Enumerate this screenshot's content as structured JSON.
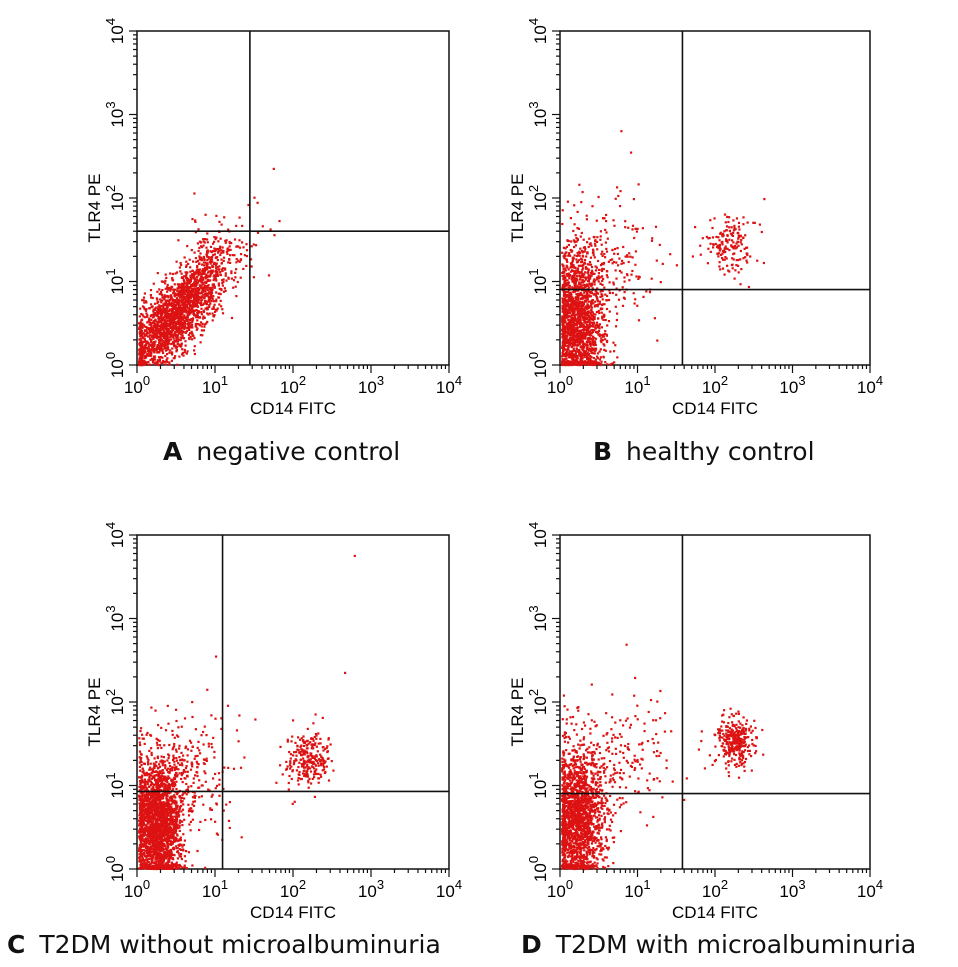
{
  "chart_data": [
    {
      "type": "scatter",
      "panel": "A",
      "caption": "negative control",
      "xlabel": "CD14 FITC",
      "ylabel": "TLR4 PE",
      "xscale": "log",
      "yscale": "log",
      "xlim": [
        1,
        10000
      ],
      "ylim": [
        1,
        10000
      ],
      "xticks": [
        "10^0",
        "10^1",
        "10^2",
        "10^3",
        "10^4"
      ],
      "yticks": [
        "10^0",
        "10^1",
        "10^2",
        "10^3",
        "10^4"
      ],
      "gate": {
        "x": 28,
        "y": 40
      },
      "clusters": [
        {
          "center": [
            3,
            4
          ],
          "spread": [
            0.35,
            0.38
          ],
          "count": 2200,
          "correlated": true
        },
        {
          "center": [
            9,
            22
          ],
          "spread": [
            0.2,
            0.2
          ],
          "count": 90
        }
      ],
      "outliers": [
        [
          55,
          230
        ],
        [
          56,
          37
        ],
        [
          26,
          85
        ],
        [
          20,
          60
        ]
      ]
    },
    {
      "type": "scatter",
      "panel": "B",
      "caption": "healthy control",
      "xlabel": "CD14 FITC",
      "ylabel": "TLR4 PE",
      "xscale": "log",
      "yscale": "log",
      "xlim": [
        1,
        10000
      ],
      "ylim": [
        1,
        10000
      ],
      "xticks": [
        "10^0",
        "10^1",
        "10^2",
        "10^3",
        "10^4"
      ],
      "yticks": [
        "10^0",
        "10^1",
        "10^2",
        "10^3",
        "10^4"
      ],
      "gate": {
        "x": 38,
        "y": 8
      },
      "clusters": [
        {
          "center": [
            1.6,
            3
          ],
          "spread": [
            0.17,
            0.42
          ],
          "count": 1900
        },
        {
          "center": [
            3.5,
            18
          ],
          "spread": [
            0.35,
            0.35
          ],
          "count": 230
        },
        {
          "center": [
            150,
            28
          ],
          "spread": [
            0.16,
            0.16
          ],
          "count": 170
        }
      ],
      "outliers": [
        [
          6,
          650
        ],
        [
          8,
          360
        ],
        [
          420,
          100
        ],
        [
          10,
          150
        ]
      ]
    },
    {
      "type": "scatter",
      "panel": "C",
      "caption": "T2DM without microalbuminuria",
      "xlabel": "CD14 FITC",
      "ylabel": "TLR4 PE",
      "xscale": "log",
      "yscale": "log",
      "xlim": [
        1,
        10000
      ],
      "ylim": [
        1,
        10000
      ],
      "xticks": [
        "10^0",
        "10^1",
        "10^2",
        "10^3",
        "10^4"
      ],
      "yticks": [
        "10^0",
        "10^1",
        "10^2",
        "10^3",
        "10^4"
      ],
      "gate": {
        "x": 12.5,
        "y": 8.5
      },
      "clusters": [
        {
          "center": [
            1.8,
            3.5
          ],
          "spread": [
            0.16,
            0.38
          ],
          "count": 2300
        },
        {
          "center": [
            4,
            16
          ],
          "spread": [
            0.35,
            0.35
          ],
          "count": 260
        },
        {
          "center": [
            150,
            22
          ],
          "spread": [
            0.14,
            0.17
          ],
          "count": 260
        }
      ],
      "outliers": [
        [
          600,
          5800
        ],
        [
          450,
          230
        ],
        [
          10,
          360
        ],
        [
          12,
          2.3
        ],
        [
          15,
          3.2
        ]
      ]
    },
    {
      "type": "scatter",
      "panel": "D",
      "caption": "T2DM with microalbuminuria",
      "xlabel": "CD14 FITC",
      "ylabel": "TLR4 PE",
      "xscale": "log",
      "yscale": "log",
      "xlim": [
        1,
        10000
      ],
      "ylim": [
        1,
        10000
      ],
      "xticks": [
        "10^0",
        "10^1",
        "10^2",
        "10^3",
        "10^4"
      ],
      "yticks": [
        "10^0",
        "10^1",
        "10^2",
        "10^3",
        "10^4"
      ],
      "gate": {
        "x": 38,
        "y": 8
      },
      "clusters": [
        {
          "center": [
            1.6,
            4
          ],
          "spread": [
            0.17,
            0.4
          ],
          "count": 1800
        },
        {
          "center": [
            4,
            20
          ],
          "spread": [
            0.4,
            0.35
          ],
          "count": 260
        },
        {
          "center": [
            180,
            35
          ],
          "spread": [
            0.12,
            0.14
          ],
          "count": 320
        }
      ],
      "outliers": [
        [
          7,
          500
        ],
        [
          9,
          200
        ],
        [
          120,
          60
        ]
      ]
    }
  ],
  "colors": {
    "points": "#dd1212",
    "lines": "#111111",
    "background": "#ffffff"
  }
}
